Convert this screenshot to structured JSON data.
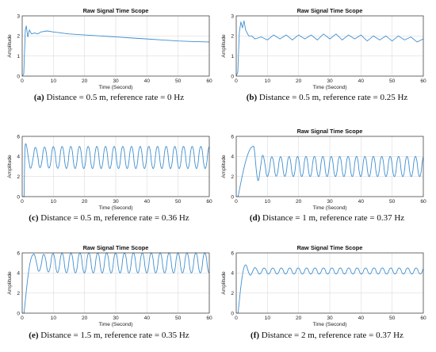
{
  "chart_data": [
    {
      "id": "a",
      "type": "line",
      "title": "Raw Signal Time Scope",
      "xlabel": "Time (Second)",
      "ylabel": "Amplitude",
      "xlim": [
        0,
        60
      ],
      "ylim": [
        0,
        3
      ],
      "xticks": [
        0,
        10,
        20,
        30,
        40,
        50,
        60
      ],
      "yticks": [
        0,
        1,
        2,
        3
      ],
      "grid": true,
      "caption_label": "(a)",
      "caption_text": "Distance = 0.5 m, reference rate = 0 Hz",
      "x": [
        0,
        0.5,
        1.0,
        1.3,
        1.8,
        2.3,
        3.0,
        4.0,
        5.0,
        6.0,
        8.0,
        10.0,
        15.0,
        20.0,
        25.0,
        30.0,
        35.0,
        40.0,
        45.0,
        50.0,
        55.0,
        60.0
      ],
      "values": [
        0,
        0.1,
        2.3,
        2.5,
        1.95,
        2.3,
        2.1,
        2.15,
        2.1,
        2.2,
        2.25,
        2.2,
        2.1,
        2.05,
        2.0,
        1.95,
        1.9,
        1.85,
        1.8,
        1.75,
        1.72,
        1.7
      ]
    },
    {
      "id": "b",
      "type": "line",
      "title": "Raw Signal Time Scope",
      "xlabel": "Time (Second)",
      "ylabel": "Amplitude",
      "xlim": [
        0,
        60
      ],
      "ylim": [
        0,
        3
      ],
      "xticks": [
        0,
        10,
        20,
        30,
        40,
        50,
        60
      ],
      "yticks": [
        0,
        1,
        2,
        3
      ],
      "grid": true,
      "caption_label": "(b)",
      "caption_text": "Distance = 0.5 m, reference rate = 0.25 Hz",
      "x": [
        0,
        0.5,
        1.0,
        1.5,
        2.0,
        2.5,
        3.0,
        4.0,
        5.0,
        6.0,
        8.0,
        10.0,
        12.0,
        14.0,
        16.0,
        18.0,
        20.0,
        22.0,
        24.0,
        26.0,
        28.0,
        30.0,
        32.0,
        34.0,
        36.0,
        38.0,
        40.0,
        42.0,
        44.0,
        46.0,
        48.0,
        50.0,
        52.0,
        54.0,
        56.0,
        58.0,
        60.0
      ],
      "values": [
        0,
        0.2,
        2.2,
        2.7,
        2.4,
        2.75,
        2.3,
        2.0,
        2.0,
        1.85,
        1.95,
        1.8,
        2.05,
        1.85,
        2.05,
        1.8,
        2.05,
        1.85,
        2.05,
        1.8,
        2.1,
        1.85,
        2.1,
        1.8,
        2.05,
        1.85,
        2.05,
        1.75,
        2.0,
        1.8,
        2.0,
        1.75,
        2.0,
        1.8,
        1.95,
        1.7,
        1.85
      ]
    },
    {
      "id": "c",
      "type": "line",
      "title": "",
      "xlabel": "Time (Second)",
      "ylabel": "Amplitude",
      "xlim": [
        0,
        60
      ],
      "ylim": [
        0,
        6
      ],
      "xticks": [
        0,
        10,
        20,
        30,
        40,
        50,
        60
      ],
      "yticks": [
        0,
        2,
        4,
        6
      ],
      "grid": true,
      "caption_label": "(c)",
      "caption_text": "Distance = 0.5 m, reference rate = 0.36 Hz",
      "model": {
        "start": 1.0,
        "mid": 3.9,
        "amp": 1.1,
        "period": 2.78,
        "phase": 0.0,
        "rise_peak": 5.2
      }
    },
    {
      "id": "d",
      "type": "line",
      "title": "Raw Signal Time Scope",
      "xlabel": "Time (Second)",
      "ylabel": "Amplitude",
      "xlim": [
        0,
        60
      ],
      "ylim": [
        0,
        6
      ],
      "xticks": [
        0,
        10,
        20,
        30,
        40,
        50,
        60
      ],
      "yticks": [
        0,
        2,
        4,
        6
      ],
      "grid": true,
      "caption_label": "(d)",
      "caption_text": "Distance = 1 m, reference rate = 0.37 Hz",
      "model": {
        "start": 5.5,
        "mid": 3.0,
        "amp": 1.0,
        "period": 2.7,
        "phase": 0.0,
        "rise_peak": 5.0
      }
    },
    {
      "id": "e",
      "type": "line",
      "title": "Raw Signal Time Scope",
      "xlabel": "Time (Second)",
      "ylabel": "Amplitude",
      "xlim": [
        0,
        60
      ],
      "ylim": [
        0,
        6
      ],
      "xticks": [
        0,
        10,
        20,
        30,
        40,
        50,
        60
      ],
      "yticks": [
        0,
        2,
        4,
        6
      ],
      "grid": true,
      "caption_label": "(e)",
      "caption_text": "Distance = 1.5 m, reference rate = 0.35 Hz",
      "model": {
        "start": 3.5,
        "mid": 5.0,
        "amp": 1.0,
        "period": 2.86,
        "phase": 0.0,
        "rise_peak": 5.8
      }
    },
    {
      "id": "f",
      "type": "line",
      "title": "Raw Signal Time Scope",
      "xlabel": "Time (Second)",
      "ylabel": "Amplitude",
      "xlim": [
        0,
        60
      ],
      "ylim": [
        0,
        6
      ],
      "xticks": [
        0,
        10,
        20,
        30,
        40,
        50,
        60
      ],
      "yticks": [
        0,
        2,
        4,
        6
      ],
      "grid": true,
      "caption_label": "(f)",
      "caption_text": "Distance = 2 m, reference rate = 0.37 Hz",
      "model": {
        "start": 3.0,
        "mid": 4.2,
        "amp": 0.3,
        "period": 2.7,
        "phase": 0.0,
        "rise_peak": 4.8
      }
    }
  ],
  "colors": {
    "line": "#3f8fd0",
    "grid": "#dcdcdc",
    "axis": "#333333",
    "text": "#111111"
  }
}
